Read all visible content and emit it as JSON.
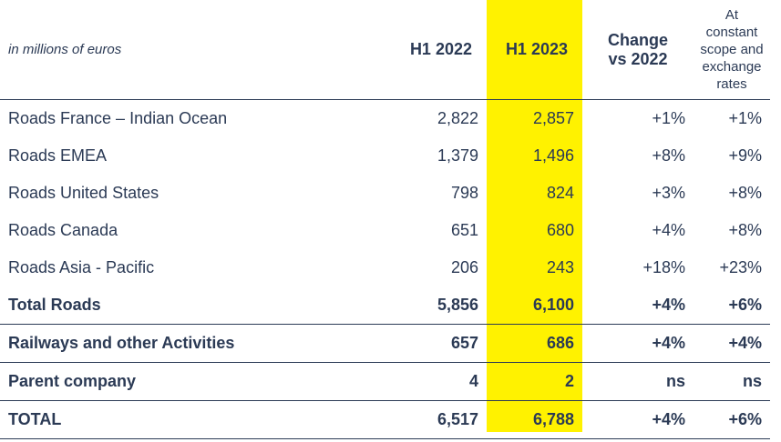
{
  "header": {
    "units": "in millions of euros",
    "col_h1_2022": "H1 2022",
    "col_h1_2023": "H1 2023",
    "col_change_line1": "Change",
    "col_change_line2": "vs 2022",
    "col_constant_lines": [
      "At",
      "constant",
      "scope and",
      "exchange",
      "rates"
    ]
  },
  "highlight_color": "#fff200",
  "text_color": "#2b3a55",
  "rows": [
    {
      "label": "Roads France – Indian Ocean",
      "h1_2022": "2,822",
      "h1_2023": "2,857",
      "change": "+1%",
      "constant": "+1%"
    },
    {
      "label": "Roads EMEA",
      "h1_2022": "1,379",
      "h1_2023": "1,496",
      "change": "+8%",
      "constant": "+9%"
    },
    {
      "label": "Roads United States",
      "h1_2022": "798",
      "h1_2023": "824",
      "change": "+3%",
      "constant": "+8%"
    },
    {
      "label": "Roads Canada",
      "h1_2022": "651",
      "h1_2023": "680",
      "change": "+4%",
      "constant": "+8%"
    },
    {
      "label": "Roads Asia - Pacific",
      "h1_2022": "206",
      "h1_2023": "243",
      "change": "+18%",
      "constant": "+23%"
    },
    {
      "label": "Total Roads",
      "h1_2022": "5,856",
      "h1_2023": "6,100",
      "change": "+4%",
      "constant": "+6%"
    },
    {
      "label": "Railways and other Activities",
      "h1_2022": "657",
      "h1_2023": "686",
      "change": "+4%",
      "constant": "+4%"
    },
    {
      "label": "Parent company",
      "h1_2022": "4",
      "h1_2023": "2",
      "change": "ns",
      "constant": "ns"
    },
    {
      "label": "TOTAL",
      "h1_2022": "6,517",
      "h1_2023": "6,788",
      "change": "+4%",
      "constant": "+6%"
    }
  ]
}
